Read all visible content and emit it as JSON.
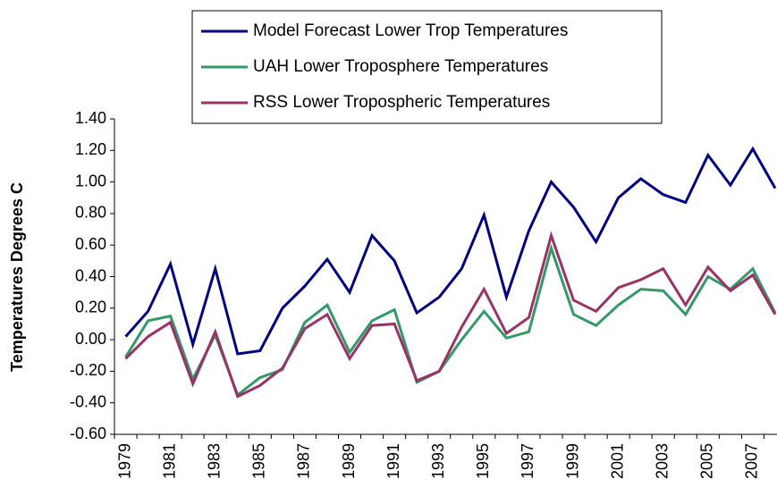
{
  "chart_data": {
    "type": "line",
    "y_label": "Temperatures Degrees C",
    "categories": [
      "1979",
      null,
      "1981",
      null,
      "1983",
      null,
      "1985",
      null,
      "1987",
      null,
      "1989",
      null,
      "1991",
      null,
      "1993",
      null,
      "1995",
      null,
      "1997",
      null,
      "1999",
      null,
      "2001",
      null,
      "2003",
      null,
      "2005",
      null,
      "2007",
      null
    ],
    "series": [
      {
        "name": "Model Forecast Lower Trop Temperatures",
        "color": "#000080",
        "values": [
          0.02,
          0.18,
          0.48,
          -0.03,
          0.45,
          -0.09,
          -0.07,
          0.2,
          0.34,
          0.51,
          0.3,
          0.66,
          0.5,
          0.17,
          0.27,
          0.45,
          0.79,
          0.27,
          0.69,
          1.0,
          0.84,
          0.62,
          0.9,
          1.02,
          0.92,
          0.87,
          1.17,
          0.98,
          1.21,
          0.96
        ]
      },
      {
        "name": "UAH Lower Troposphere Temperatures",
        "color": "#339966",
        "values": [
          -0.11,
          0.12,
          0.15,
          -0.25,
          0.03,
          -0.35,
          -0.24,
          -0.19,
          0.11,
          0.22,
          -0.08,
          0.12,
          0.19,
          -0.27,
          -0.2,
          0.0,
          0.18,
          0.01,
          0.05,
          0.58,
          0.16,
          0.09,
          0.22,
          0.32,
          0.31,
          0.16,
          0.4,
          0.32,
          0.45,
          0.17
        ]
      },
      {
        "name": "RSS Lower Tropospheric Temperatures",
        "color": "#993366",
        "values": [
          -0.12,
          0.02,
          0.11,
          -0.28,
          0.05,
          -0.36,
          -0.29,
          -0.18,
          0.07,
          0.16,
          -0.12,
          0.09,
          0.1,
          -0.26,
          -0.2,
          0.08,
          0.32,
          0.04,
          0.14,
          0.66,
          0.25,
          0.18,
          0.33,
          0.38,
          0.45,
          0.22,
          0.46,
          0.31,
          0.41,
          0.16
        ]
      }
    ],
    "ylim": [
      -0.6,
      1.4
    ],
    "yticks": [
      {
        "value": -0.6,
        "label": "-0.60"
      },
      {
        "value": -0.4,
        "label": "-0.40"
      },
      {
        "value": -0.2,
        "label": "-0.20"
      },
      {
        "value": 0,
        "label": "0.00"
      },
      {
        "value": 0.2,
        "label": "0.20"
      },
      {
        "value": 0.4,
        "label": "0.40"
      },
      {
        "value": 0.6,
        "label": "0.60"
      },
      {
        "value": 0.8,
        "label": "0.80"
      },
      {
        "value": 1.0,
        "label": "1.00"
      },
      {
        "value": 1.2,
        "label": "1.20"
      },
      {
        "value": 1.4,
        "label": "1.40"
      }
    ],
    "grid": false,
    "legend": "top"
  }
}
